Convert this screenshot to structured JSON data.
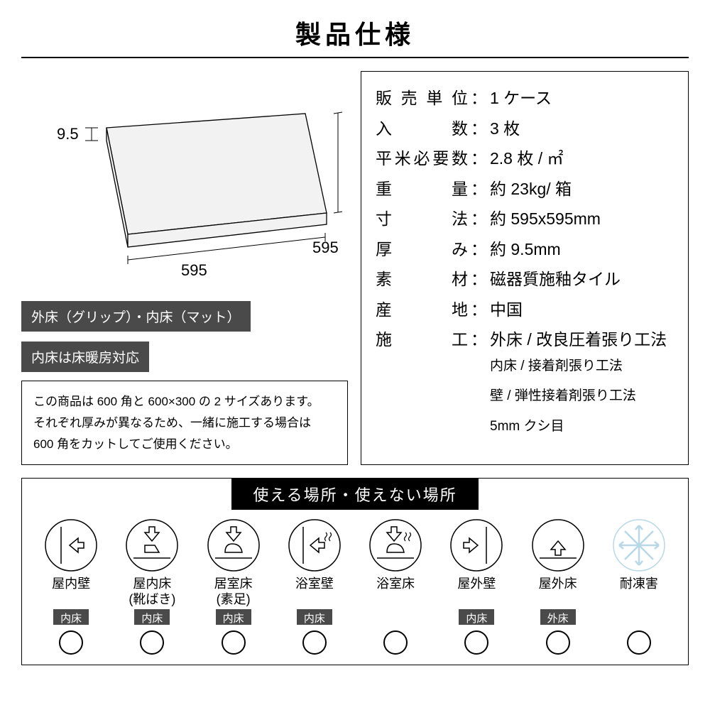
{
  "title": "製品仕様",
  "diagram": {
    "thickness": "9.5",
    "width": "595",
    "depth": "595",
    "fill": "#f2f2f2",
    "stroke": "#000000"
  },
  "tags": {
    "line1": "外床（グリップ）・内床（マット）",
    "line2": "内床は床暖房対応"
  },
  "note": {
    "l1": "この商品は 600 角と 600×300 の 2 サイズあります。",
    "l2": "それぞれ厚みが異なるため、一緒に施工する場合は",
    "l3": "600 角をカットしてご使用ください。"
  },
  "specs": [
    {
      "label": "販売単位",
      "value": "1 ケース"
    },
    {
      "label": "入数",
      "label_spaced": "入　　数",
      "value": "3 枚"
    },
    {
      "label": "平米必要数",
      "value": "2.8 枚 / ㎡"
    },
    {
      "label": "重量",
      "label_spaced": "重　　量",
      "value": "約 23kg/ 箱"
    },
    {
      "label": "寸法",
      "label_spaced": "寸　　法",
      "value": "約 595x595mm"
    },
    {
      "label": "厚み",
      "label_spaced": "厚　　み",
      "value": "約 9.5mm"
    },
    {
      "label": "素材",
      "label_spaced": "素　　材",
      "value": "磁器質施釉タイル"
    },
    {
      "label": "産地",
      "label_spaced": "産　　地",
      "value": "中国"
    },
    {
      "label": "施工",
      "label_spaced": "施　　工",
      "value": "外床 / 改良圧着張り工法",
      "sub": [
        "内床 / 接着剤張り工法",
        "壁 / 弾性接着剤張り工法",
        "5mm クシ目"
      ]
    }
  ],
  "usage": {
    "title": "使える場所・使えない場所",
    "items": [
      {
        "label": "屋内壁",
        "tag": "内床",
        "icon": "wall-in"
      },
      {
        "label": "屋内床\n(靴ばき)",
        "tag": "内床",
        "icon": "floor-shoe"
      },
      {
        "label": "居室床\n(素足)",
        "tag": "内床",
        "icon": "floor-bare"
      },
      {
        "label": "浴室壁",
        "tag": "内床",
        "icon": "bath-wall"
      },
      {
        "label": "浴室床",
        "tag": "",
        "icon": "bath-floor"
      },
      {
        "label": "屋外壁",
        "tag": "内床",
        "icon": "wall-out"
      },
      {
        "label": "屋外床",
        "tag": "外床",
        "icon": "floor-out"
      },
      {
        "label": "耐凍害",
        "tag": "",
        "icon": "frost",
        "frost_color": "#b8d8e8"
      }
    ]
  },
  "colors": {
    "tag_bg": "#4a4a4a",
    "frost": "#b8d8e8"
  }
}
